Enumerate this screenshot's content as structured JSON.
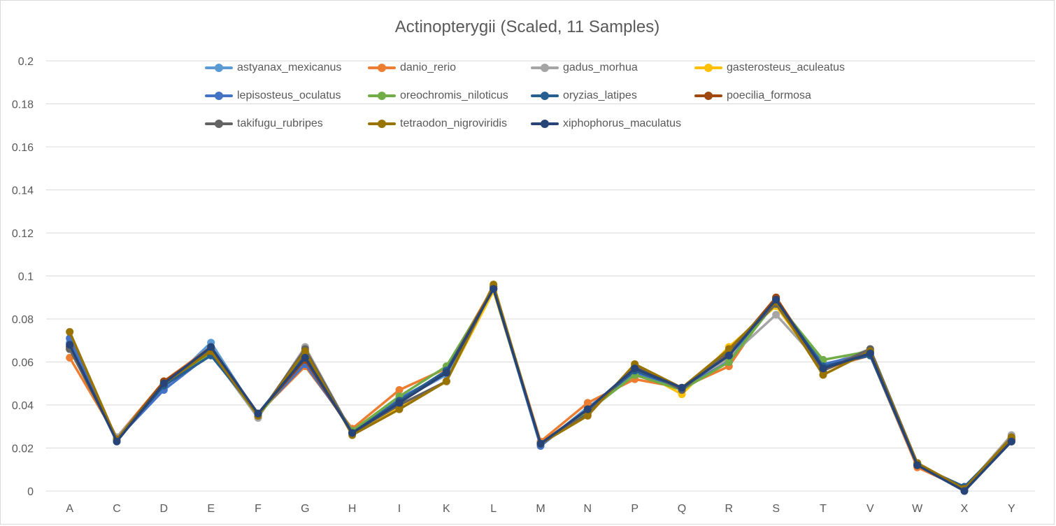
{
  "chart_data": {
    "type": "line",
    "title": "Actinopterygii (Scaled, 11 Samples)",
    "xlabel": "",
    "ylabel": "",
    "ylim": [
      0,
      0.2
    ],
    "yticks": [
      0,
      0.02,
      0.04,
      0.06,
      0.08,
      0.1,
      0.12,
      0.14,
      0.16,
      0.18,
      0.2
    ],
    "ytick_labels": [
      "0",
      "0.02",
      "0.04",
      "0.06",
      "0.08",
      "0.1",
      "0.12",
      "0.14",
      "0.16",
      "0.18",
      "0.2"
    ],
    "grid": true,
    "legend_position": "top",
    "categories": [
      "A",
      "C",
      "D",
      "E",
      "F",
      "G",
      "H",
      "I",
      "K",
      "L",
      "M",
      "N",
      "P",
      "Q",
      "R",
      "S",
      "T",
      "V",
      "W",
      "X",
      "Y"
    ],
    "series": [
      {
        "name": "astyanax_mexicanus",
        "color": "#5b9bd5",
        "values": [
          0.069,
          0.024,
          0.048,
          0.069,
          0.035,
          0.061,
          0.028,
          0.042,
          0.054,
          0.094,
          0.021,
          0.039,
          0.054,
          0.047,
          0.061,
          0.088,
          0.058,
          0.064,
          0.012,
          0.001,
          0.024
        ]
      },
      {
        "name": "danio_rerio",
        "color": "#ed7d31",
        "values": [
          0.062,
          0.025,
          0.051,
          0.067,
          0.036,
          0.058,
          0.029,
          0.047,
          0.057,
          0.095,
          0.023,
          0.041,
          0.052,
          0.048,
          0.058,
          0.09,
          0.057,
          0.063,
          0.011,
          0.001,
          0.023
        ]
      },
      {
        "name": "gadus_morhua",
        "color": "#a5a5a5",
        "values": [
          0.066,
          0.025,
          0.05,
          0.064,
          0.034,
          0.067,
          0.027,
          0.042,
          0.055,
          0.094,
          0.022,
          0.037,
          0.056,
          0.047,
          0.062,
          0.082,
          0.058,
          0.066,
          0.013,
          0.001,
          0.026
        ]
      },
      {
        "name": "gasterosteus_aculeatus",
        "color": "#ffc000",
        "values": [
          0.066,
          0.024,
          0.05,
          0.065,
          0.035,
          0.064,
          0.027,
          0.039,
          0.051,
          0.093,
          0.022,
          0.036,
          0.057,
          0.045,
          0.067,
          0.086,
          0.056,
          0.065,
          0.013,
          0.001,
          0.024
        ]
      },
      {
        "name": "lepisosteus_oculatus",
        "color": "#4472c4",
        "values": [
          0.071,
          0.024,
          0.047,
          0.064,
          0.036,
          0.059,
          0.028,
          0.043,
          0.055,
          0.094,
          0.021,
          0.038,
          0.055,
          0.048,
          0.06,
          0.089,
          0.059,
          0.064,
          0.012,
          0.001,
          0.023
        ]
      },
      {
        "name": "oreochromis_niloticus",
        "color": "#70ad47",
        "values": [
          0.066,
          0.024,
          0.05,
          0.064,
          0.035,
          0.062,
          0.028,
          0.044,
          0.058,
          0.094,
          0.022,
          0.037,
          0.054,
          0.047,
          0.06,
          0.088,
          0.061,
          0.065,
          0.013,
          0.001,
          0.024
        ]
      },
      {
        "name": "oryzias_latipes",
        "color": "#255e91",
        "values": [
          0.067,
          0.024,
          0.049,
          0.063,
          0.036,
          0.063,
          0.027,
          0.042,
          0.056,
          0.094,
          0.022,
          0.038,
          0.056,
          0.048,
          0.063,
          0.089,
          0.058,
          0.063,
          0.012,
          0.002,
          0.024
        ]
      },
      {
        "name": "poecilia_formosa",
        "color": "#9e480e",
        "values": [
          0.067,
          0.024,
          0.051,
          0.066,
          0.036,
          0.061,
          0.027,
          0.041,
          0.055,
          0.095,
          0.022,
          0.038,
          0.057,
          0.048,
          0.064,
          0.09,
          0.056,
          0.065,
          0.012,
          0.001,
          0.024
        ]
      },
      {
        "name": "takifugu_rubripes",
        "color": "#636363",
        "values": [
          0.066,
          0.024,
          0.05,
          0.066,
          0.035,
          0.066,
          0.027,
          0.04,
          0.051,
          0.095,
          0.022,
          0.036,
          0.058,
          0.047,
          0.065,
          0.087,
          0.056,
          0.066,
          0.013,
          0.001,
          0.025
        ]
      },
      {
        "name": "tetraodon_nigroviridis",
        "color": "#997300",
        "values": [
          0.074,
          0.024,
          0.05,
          0.065,
          0.035,
          0.065,
          0.026,
          0.038,
          0.051,
          0.096,
          0.022,
          0.035,
          0.059,
          0.048,
          0.066,
          0.088,
          0.054,
          0.065,
          0.013,
          0.001,
          0.025
        ]
      },
      {
        "name": "xiphophorus_maculatus",
        "color": "#264478",
        "values": [
          0.068,
          0.023,
          0.05,
          0.067,
          0.036,
          0.062,
          0.027,
          0.041,
          0.055,
          0.094,
          0.022,
          0.038,
          0.057,
          0.048,
          0.063,
          0.089,
          0.057,
          0.064,
          0.012,
          0.0,
          0.023
        ]
      }
    ]
  }
}
